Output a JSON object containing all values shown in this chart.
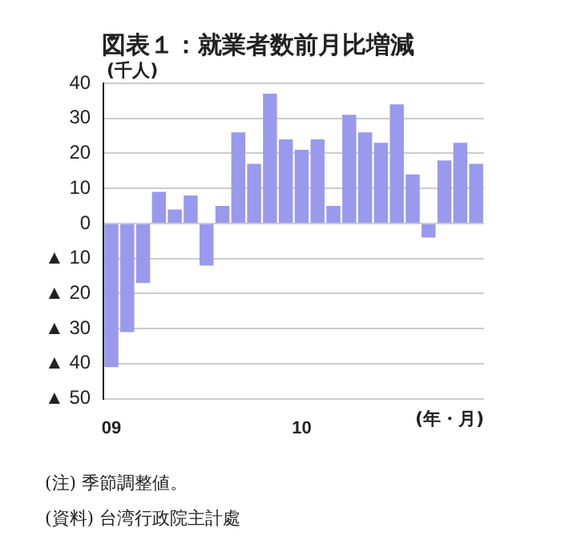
{
  "chart_data": {
    "type": "bar",
    "title": "図表１：就業者数前月比増減",
    "ylabel": "(千人)",
    "xlabel": "(年・月)",
    "categories": [
      "09",
      null,
      null,
      null,
      null,
      null,
      null,
      null,
      null,
      null,
      null,
      null,
      "10",
      null,
      null,
      null,
      null,
      null,
      null,
      null,
      null,
      null,
      null,
      null
    ],
    "values": [
      -41,
      -31,
      -17,
      9,
      4,
      8,
      -12,
      5,
      26,
      17,
      37,
      24,
      21,
      24,
      5,
      31,
      26,
      23,
      34,
      14,
      -4,
      18,
      23,
      17
    ],
    "color": "#9999ee",
    "ylim": [
      -50,
      40
    ],
    "yticks": [
      {
        "value": -50,
        "label": "▲ 50"
      },
      {
        "value": -40,
        "label": "▲ 40"
      },
      {
        "value": -30,
        "label": "▲ 30"
      },
      {
        "value": -20,
        "label": "▲ 20"
      },
      {
        "value": -10,
        "label": "▲ 10"
      },
      0,
      10,
      20,
      30,
      40
    ],
    "grid": "y",
    "legend": false,
    "annotations": [
      "(注) 季節調整値。",
      "(資料) 台湾行政院主計處"
    ]
  }
}
